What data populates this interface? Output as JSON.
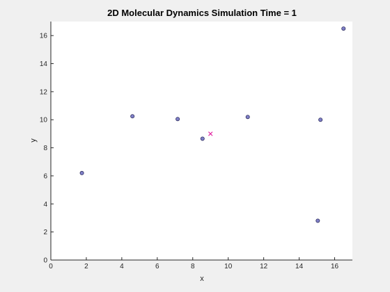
{
  "chart_data": {
    "type": "scatter",
    "title": "2D Molecular Dynamics Simulation Time = 1",
    "xlabel": "x",
    "ylabel": "y",
    "xlim": [
      0,
      17
    ],
    "ylim": [
      0,
      17
    ],
    "grid": false,
    "x_ticks": [
      0,
      2,
      4,
      6,
      8,
      10,
      12,
      14,
      16
    ],
    "y_ticks": [
      0,
      2,
      4,
      6,
      8,
      10,
      12,
      14,
      16
    ],
    "series": [
      {
        "marker": "circle",
        "marker_fill": "#8080c8",
        "marker_edge": "#303060",
        "points": [
          {
            "x": 1.75,
            "y": 6.2
          },
          {
            "x": 4.6,
            "y": 10.25
          },
          {
            "x": 7.15,
            "y": 10.05
          },
          {
            "x": 8.55,
            "y": 8.65
          },
          {
            "x": 11.1,
            "y": 10.2
          },
          {
            "x": 15.2,
            "y": 10.0
          },
          {
            "x": 15.05,
            "y": 2.8
          },
          {
            "x": 16.5,
            "y": 16.5
          }
        ]
      },
      {
        "marker": "x",
        "color": "#e0169a",
        "points": [
          {
            "x": 9.0,
            "y": 9.0
          }
        ]
      }
    ]
  }
}
